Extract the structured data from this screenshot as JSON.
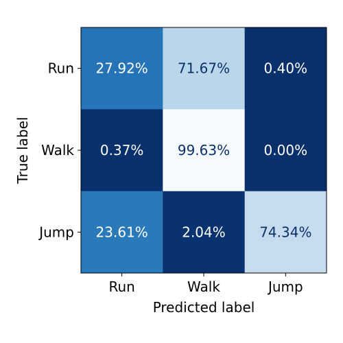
{
  "chart_data": {
    "type": "heatmap",
    "title": "",
    "xlabel": "Predicted label",
    "ylabel": "True label",
    "x_categories": [
      "Run",
      "Walk",
      "Jump"
    ],
    "y_categories": [
      "Run",
      "Walk",
      "Jump"
    ],
    "values": [
      [
        27.92,
        71.67,
        0.4
      ],
      [
        0.37,
        99.63,
        0.0
      ],
      [
        23.61,
        2.04,
        74.34
      ]
    ],
    "cell_labels": [
      [
        "27.92%",
        "71.67%",
        "0.40%"
      ],
      [
        "0.37%",
        "99.63%",
        "0.00%"
      ],
      [
        "23.61%",
        "2.04%",
        "74.34%"
      ]
    ],
    "colormap": "Blues_reversed",
    "colors": {
      "cells": [
        [
          "#2474b7",
          "#bad6eb",
          "#08306b"
        ],
        [
          "#08306b",
          "#f7fbff",
          "#08306b"
        ],
        [
          "#2a7ab9",
          "#083370",
          "#c7dbef"
        ]
      ],
      "text_light": "#ffffff",
      "text_dark": "#08306b"
    },
    "grid": false,
    "legend": "none"
  }
}
